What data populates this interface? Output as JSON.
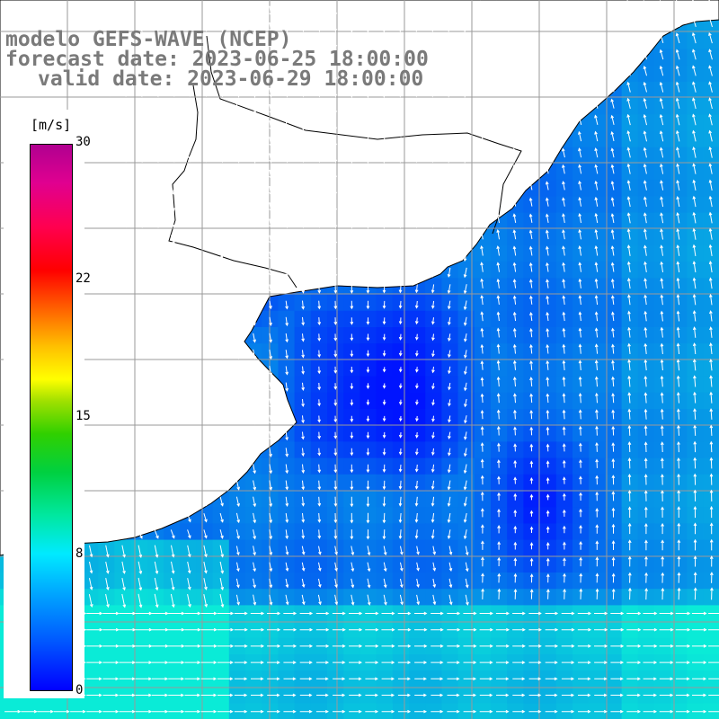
{
  "title": {
    "line1": "modelo GEFS-WAVE (NCEP)",
    "line2": "forecast date: 2023-06-25 18:00:00",
    "line3": "valid date: 2023-06-29 18:00:00"
  },
  "legend": {
    "unit": "[m/s]",
    "ticks": [
      "30",
      "22",
      "15",
      "8",
      "0"
    ],
    "tick_values": [
      30,
      22,
      15,
      8,
      0
    ],
    "range": [
      0,
      30
    ]
  },
  "map": {
    "land_color": "#ffffff",
    "coast_color": "#000000",
    "grid_color": "#9a9a9a",
    "vector_color": "#ffffff",
    "low_speed_color": "#0000ff",
    "mid_speed_color": "#00b8ff"
  }
}
